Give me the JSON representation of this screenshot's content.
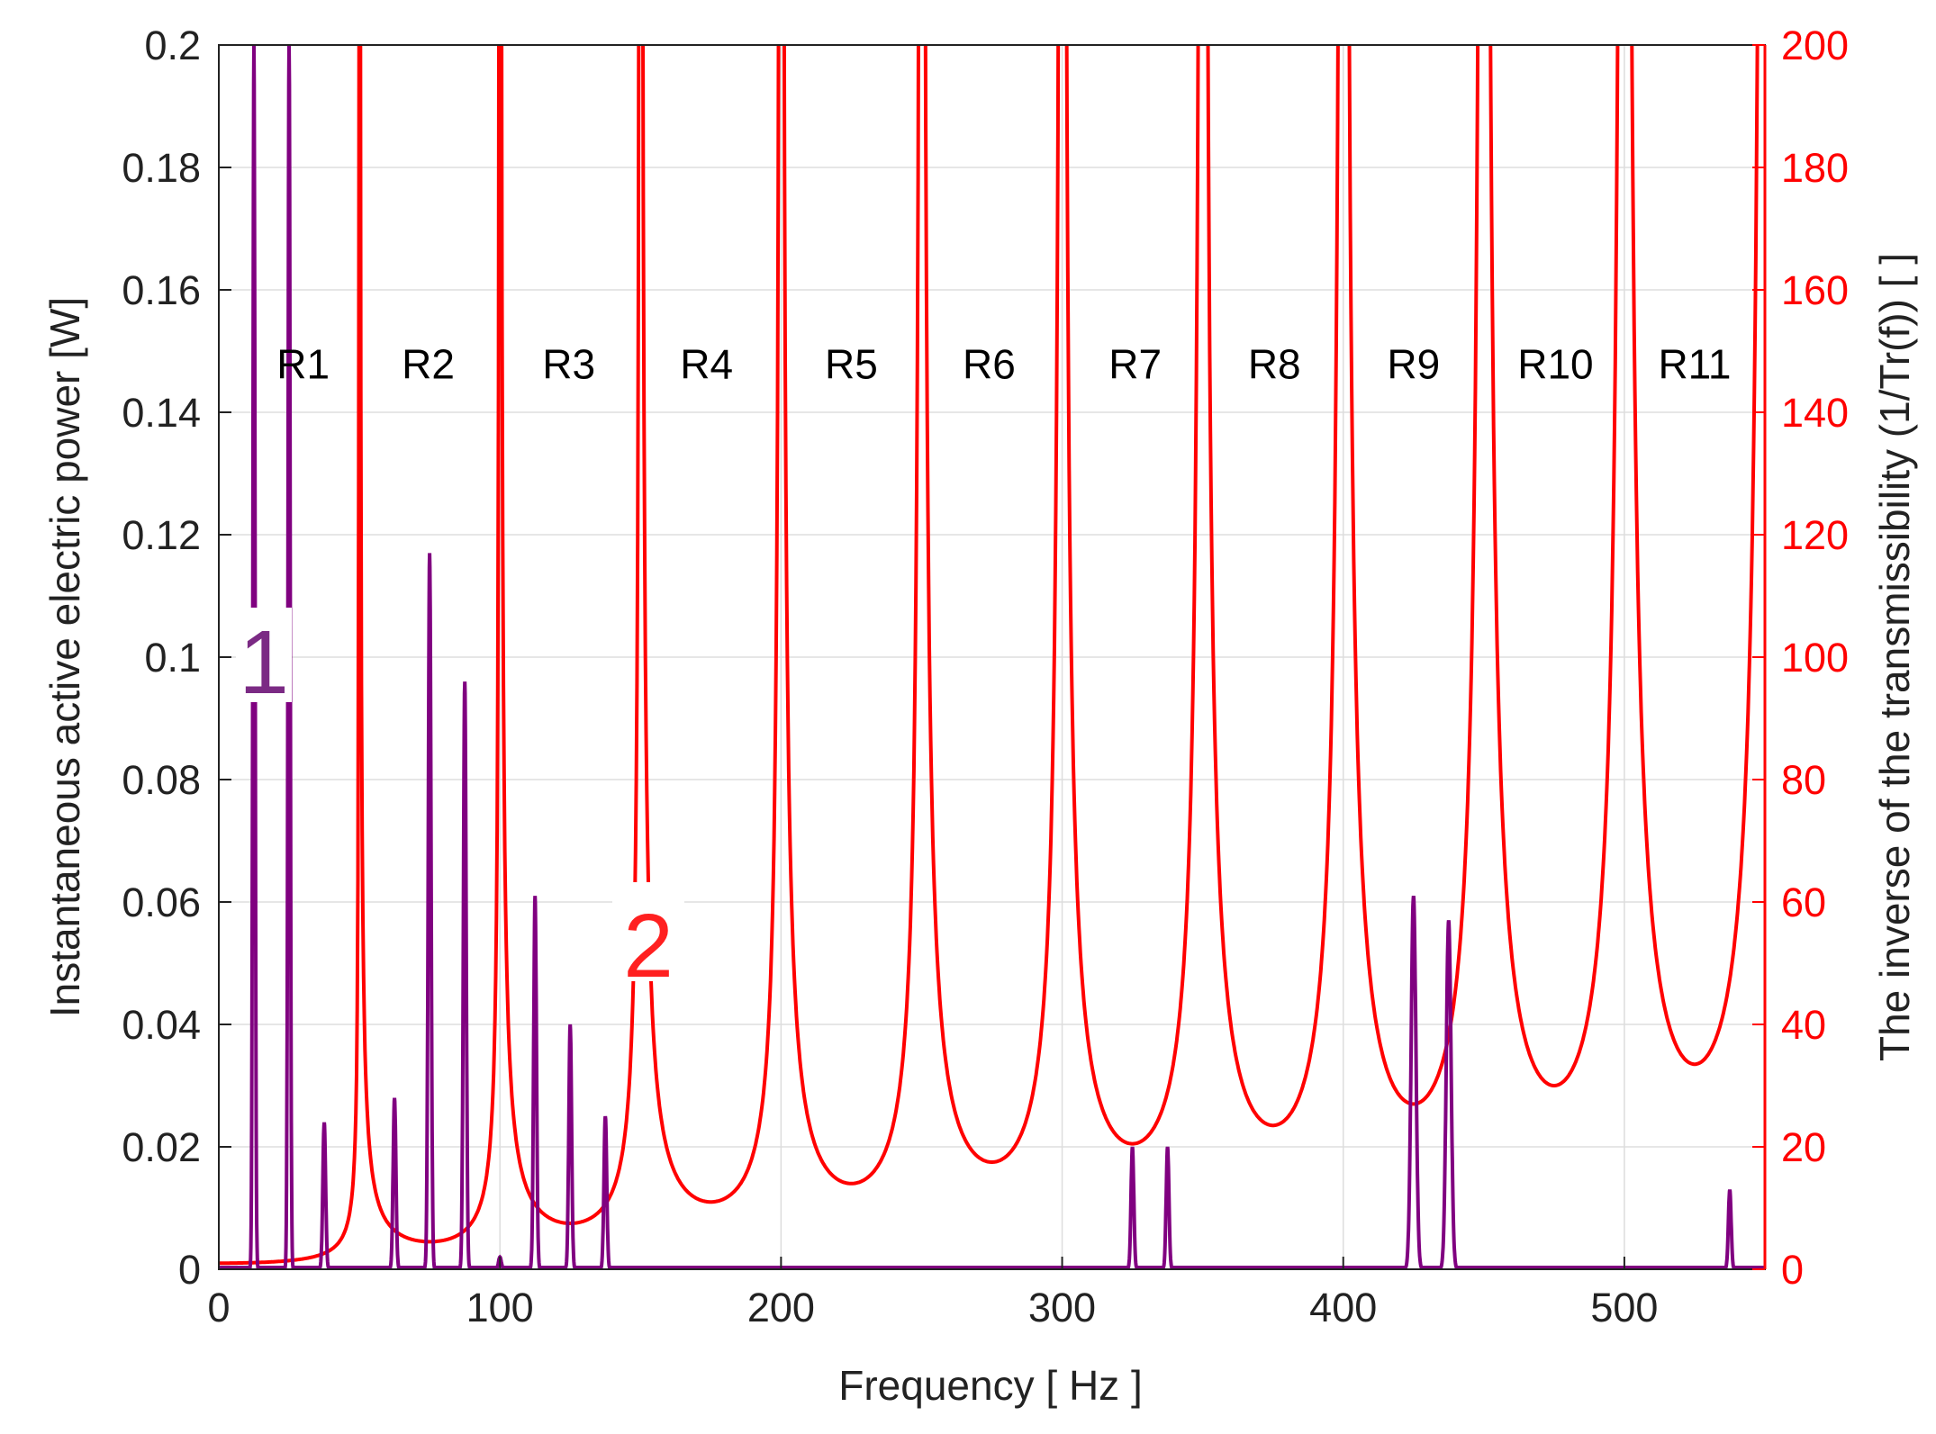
{
  "chart_data": {
    "type": "line",
    "title": "",
    "xlabel": "Frequency [ Hz ]",
    "ylabel_left": "Instantaneous active electric power [W]",
    "ylabel_right": "The inverse of the transmissibility  (1/Tr(f)) [ ]",
    "xlim": [
      0,
      550
    ],
    "ylim_left": [
      0,
      0.2
    ],
    "ylim_right": [
      0,
      200
    ],
    "grid": true,
    "x_ticks": [
      "0",
      "100",
      "200",
      "300",
      "400",
      "500"
    ],
    "y_left_ticks": [
      "0",
      "0.02",
      "0.04",
      "0.06",
      "0.08",
      "0.1",
      "0.12",
      "0.14",
      "0.16",
      "0.18",
      "0.2"
    ],
    "y_right_ticks": [
      "0",
      "20",
      "40",
      "60",
      "80",
      "100",
      "120",
      "140",
      "160",
      "180",
      "200"
    ],
    "curve_labels": [
      {
        "text": "1",
        "color": "#7b2a84"
      },
      {
        "text": "2",
        "color": "#ff2020"
      }
    ],
    "region_labels": [
      "R1",
      "R2",
      "R3",
      "R4",
      "R5",
      "R6",
      "R7",
      "R8",
      "R9",
      "R10",
      "R11"
    ],
    "region_centers_hz": [
      30,
      74.5,
      124.5,
      173.5,
      225,
      274,
      326,
      375.5,
      425,
      475.5,
      525
    ],
    "series": [
      {
        "axis": "left",
        "color": "#800080",
        "peaks": [
          {
            "f": 12.5,
            "p": 0.2
          },
          {
            "f": 25,
            "p": 0.2
          },
          {
            "f": 37.5,
            "p": 0.024
          },
          {
            "f": 62.5,
            "p": 0.028
          },
          {
            "f": 75,
            "p": 0.117
          },
          {
            "f": 87.5,
            "p": 0.096
          },
          {
            "f": 100,
            "p": 0.002
          },
          {
            "f": 112.5,
            "p": 0.061
          },
          {
            "f": 125,
            "p": 0.04
          },
          {
            "f": 137.5,
            "p": 0.025
          },
          {
            "f": 325,
            "p": 0.02
          },
          {
            "f": 337.5,
            "p": 0.02
          },
          {
            "f": 425,
            "p": 0.061
          },
          {
            "f": 437.5,
            "p": 0.057
          },
          {
            "f": 537.5,
            "p": 0.013
          }
        ]
      },
      {
        "axis": "right",
        "color": "#ff0000",
        "pole_spacing_hz": 50,
        "trough_values": [
          1,
          4.5,
          7.5,
          11,
          14,
          17.5,
          20.5,
          23.5,
          27,
          30,
          33.5
        ]
      }
    ]
  },
  "colors": {
    "power_curve": "#800080",
    "transmissibility_curve": "#ff0000",
    "grid": "#dddddd"
  }
}
